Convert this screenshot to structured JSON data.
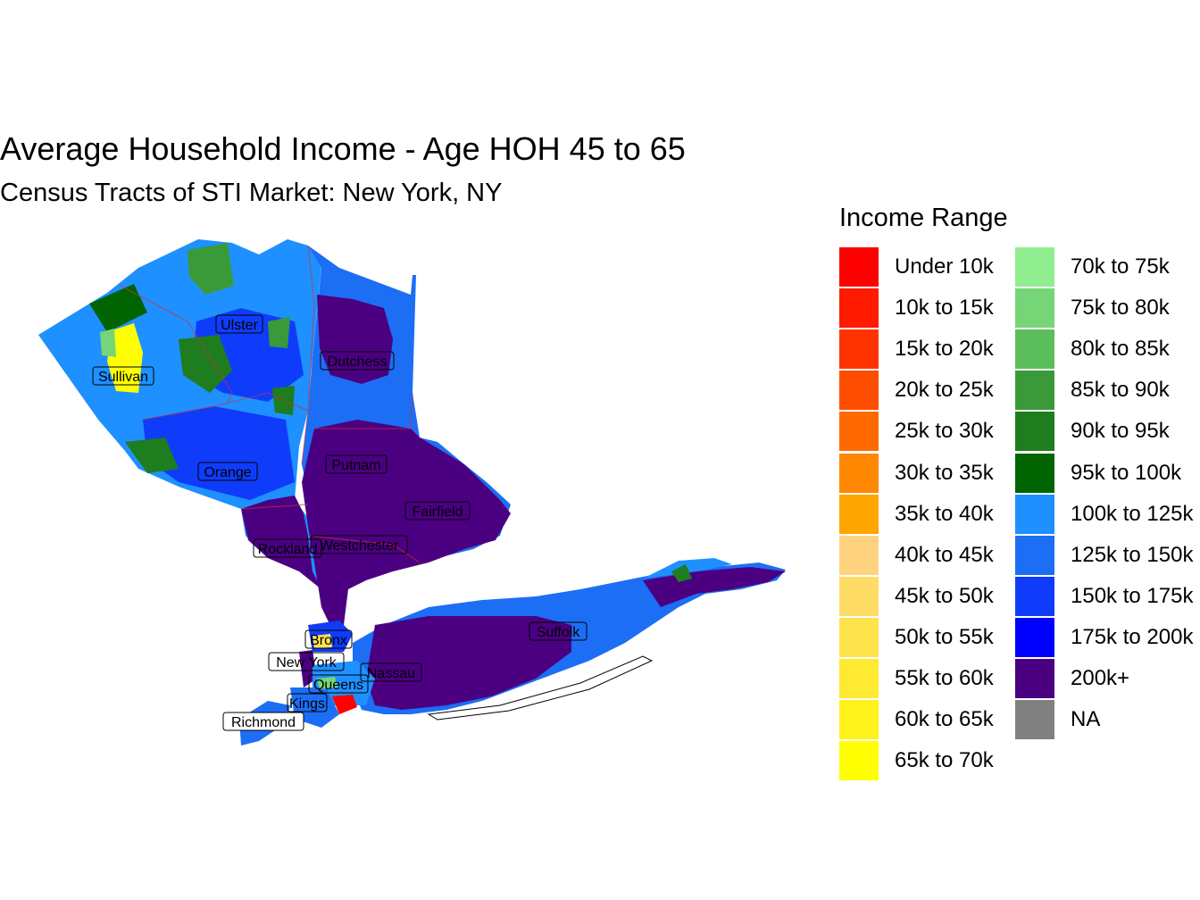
{
  "title": "Average Household Income - Age HOH 45 to 65",
  "subtitle": "Census Tracts of STI Market: New York, NY",
  "legend": {
    "title": "Income Range",
    "items": [
      {
        "label": "Under 10k",
        "color": "#FF0000"
      },
      {
        "label": "10k to 15k",
        "color": "#FF1A00"
      },
      {
        "label": "15k to 20k",
        "color": "#FF3300"
      },
      {
        "label": "20k to 25k",
        "color": "#FF4D00"
      },
      {
        "label": "25k to 30k",
        "color": "#FF6A00"
      },
      {
        "label": "30k to 35k",
        "color": "#FF8800"
      },
      {
        "label": "35k to 40k",
        "color": "#FFA500"
      },
      {
        "label": "40k to 45k",
        "color": "#FFD27F"
      },
      {
        "label": "45k to 50k",
        "color": "#FFDC66"
      },
      {
        "label": "50k to 55k",
        "color": "#FFE34D"
      },
      {
        "label": "55k to 60k",
        "color": "#FFEA33"
      },
      {
        "label": "60k to 65k",
        "color": "#FFF21A"
      },
      {
        "label": "65k to 70k",
        "color": "#FFFF00"
      },
      {
        "label": "70k to 75k",
        "color": "#90EE90"
      },
      {
        "label": "75k to 80k",
        "color": "#76D576"
      },
      {
        "label": "80k to 85k",
        "color": "#5CBD5C"
      },
      {
        "label": "85k to 90k",
        "color": "#3A9A3A"
      },
      {
        "label": "90k to 95k",
        "color": "#1E7D1E"
      },
      {
        "label": "95k to 100k",
        "color": "#006400"
      },
      {
        "label": "100k to 125k",
        "color": "#1E90FF"
      },
      {
        "label": "125k to 150k",
        "color": "#1C6EF5"
      },
      {
        "label": "150k to 175k",
        "color": "#0F3CFA"
      },
      {
        "label": "175k to 200k",
        "color": "#0000FF"
      },
      {
        "label": "200k+",
        "color": "#4B0082"
      },
      {
        "label": "NA",
        "color": "#808080"
      }
    ]
  },
  "counties": [
    "Ulster",
    "Dutchess",
    "Sullivan",
    "Orange",
    "Putnam",
    "Fairfield",
    "Rockland",
    "Westchester",
    "Suffolk",
    "Bronx",
    "New York",
    "Nassau",
    "Queens",
    "Kings",
    "Richmond"
  ]
}
